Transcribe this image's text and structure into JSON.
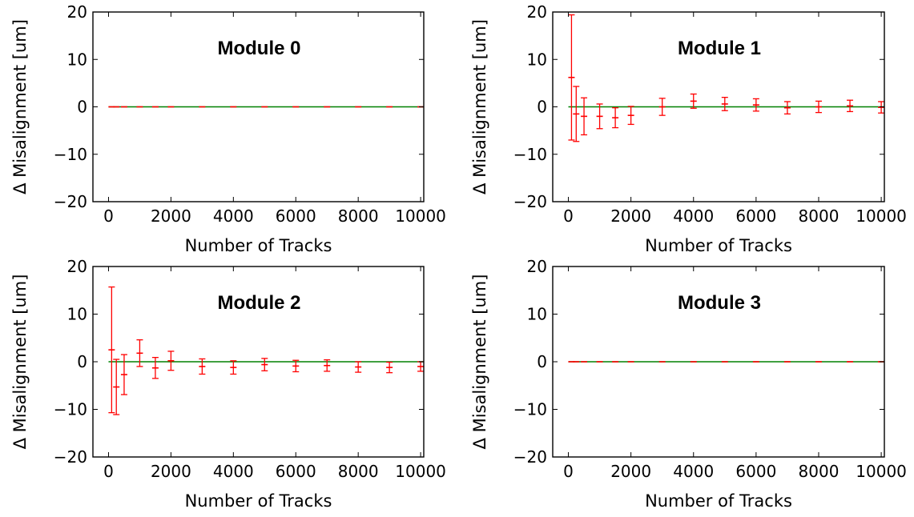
{
  "figure": {
    "colors": {
      "errorbar": "#ff0000",
      "reference_line": "#008000",
      "frame": "#000000"
    }
  },
  "chart_data": [
    {
      "type": "line",
      "title": "Module 0",
      "xlabel": "Number of Tracks",
      "ylabel": "Δ Misalignment [um]",
      "xlim": [
        -500,
        10100
      ],
      "ylim": [
        -20,
        20
      ],
      "xticks": [
        0,
        2000,
        4000,
        6000,
        8000,
        10000
      ],
      "yticks": [
        -20,
        -10,
        0,
        10,
        20
      ],
      "grid": false,
      "reference_line": 0,
      "series": [
        {
          "kind": "errorbar",
          "x": [
            100,
            250,
            500,
            1000,
            1500,
            2000,
            3000,
            4000,
            5000,
            6000,
            7000,
            8000,
            9000,
            10000
          ],
          "y": [
            0,
            0,
            0,
            0,
            0,
            0,
            0,
            0,
            0,
            0,
            0,
            0,
            0,
            0
          ],
          "yerr": [
            0,
            0,
            0,
            0,
            0,
            0,
            0,
            0,
            0,
            0,
            0,
            0,
            0,
            0
          ]
        }
      ]
    },
    {
      "type": "line",
      "title": "Module 1",
      "xlabel": "Number of Tracks",
      "ylabel": "Δ Misalignment [um]",
      "xlim": [
        -500,
        10100
      ],
      "ylim": [
        -20,
        20
      ],
      "xticks": [
        0,
        2000,
        4000,
        6000,
        8000,
        10000
      ],
      "yticks": [
        -20,
        -10,
        0,
        10,
        20
      ],
      "grid": false,
      "reference_line": 0,
      "series": [
        {
          "kind": "errorbar",
          "x": [
            100,
            250,
            500,
            1000,
            1500,
            2000,
            3000,
            4000,
            5000,
            6000,
            7000,
            8000,
            9000,
            10000
          ],
          "y": [
            6.2,
            -1.5,
            -2.0,
            -2.0,
            -2.3,
            -1.8,
            0.0,
            1.2,
            0.6,
            0.4,
            -0.2,
            0.0,
            0.2,
            -0.1
          ],
          "yerr": [
            13.2,
            5.8,
            3.9,
            2.6,
            2.1,
            1.9,
            1.8,
            1.5,
            1.4,
            1.3,
            1.3,
            1.2,
            1.2,
            1.2
          ]
        }
      ]
    },
    {
      "type": "line",
      "title": "Module 2",
      "xlabel": "Number of Tracks",
      "ylabel": "Δ Misalignment [um]",
      "xlim": [
        -500,
        10100
      ],
      "ylim": [
        -20,
        20
      ],
      "xticks": [
        0,
        2000,
        4000,
        6000,
        8000,
        10000
      ],
      "yticks": [
        -20,
        -10,
        0,
        10,
        20
      ],
      "grid": false,
      "reference_line": 0,
      "series": [
        {
          "kind": "errorbar",
          "x": [
            100,
            250,
            500,
            1000,
            1500,
            2000,
            3000,
            4000,
            5000,
            6000,
            7000,
            8000,
            9000,
            10000
          ],
          "y": [
            2.5,
            -5.3,
            -2.7,
            1.8,
            -1.3,
            0.2,
            -1.0,
            -1.2,
            -0.6,
            -0.9,
            -0.8,
            -1.1,
            -1.2,
            -1.0
          ],
          "yerr": [
            13.2,
            5.8,
            4.2,
            2.8,
            2.2,
            2.0,
            1.6,
            1.4,
            1.3,
            1.2,
            1.2,
            1.1,
            1.1,
            1.0
          ]
        }
      ]
    },
    {
      "type": "line",
      "title": "Module 3",
      "xlabel": "Number of Tracks",
      "ylabel": "Δ Misalignment [um]",
      "xlim": [
        -500,
        10100
      ],
      "ylim": [
        -20,
        20
      ],
      "xticks": [
        0,
        2000,
        4000,
        6000,
        8000,
        10000
      ],
      "yticks": [
        -20,
        -10,
        0,
        10,
        20
      ],
      "grid": false,
      "reference_line": 0,
      "series": [
        {
          "kind": "errorbar",
          "x": [
            100,
            250,
            500,
            1000,
            1500,
            2000,
            3000,
            4000,
            5000,
            6000,
            7000,
            8000,
            9000,
            10000
          ],
          "y": [
            0,
            0,
            0,
            0,
            0,
            0,
            0,
            0,
            0,
            0,
            0,
            0,
            0,
            0
          ],
          "yerr": [
            0,
            0,
            0,
            0,
            0,
            0,
            0,
            0,
            0,
            0,
            0,
            0,
            0,
            0
          ]
        }
      ]
    }
  ]
}
